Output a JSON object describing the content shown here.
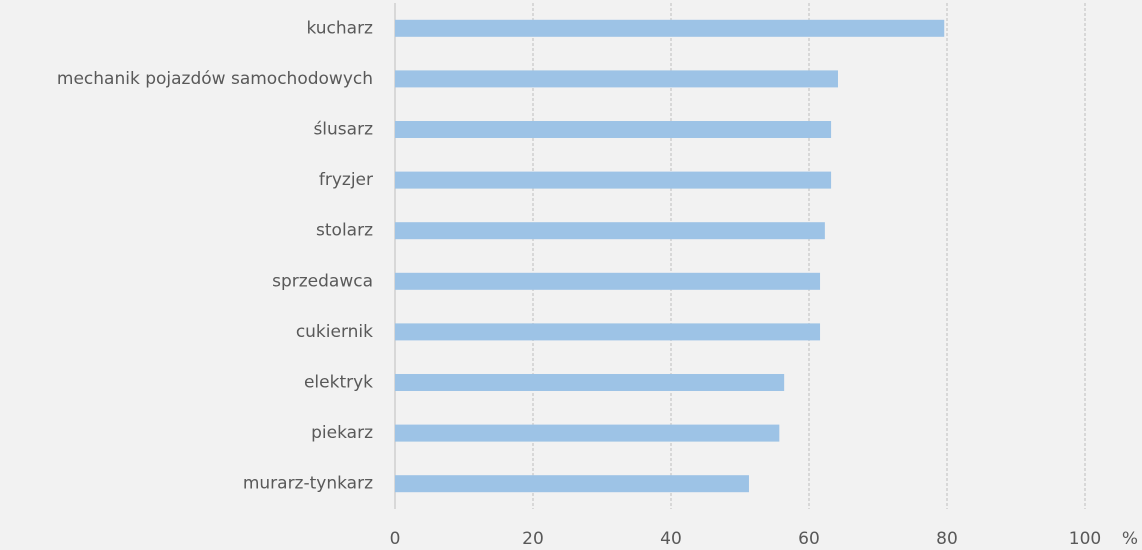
{
  "chart_data": {
    "type": "hbar",
    "xlabel": "%",
    "categories": [
      "kucharz",
      "mechanik pojazdów samochodowych",
      "ślusarz",
      "fryzjer",
      "stolarz",
      "sprzedawca",
      "cukiernik",
      "elektryk",
      "piekarz",
      "murarz-tynkarz"
    ],
    "values": [
      79.6,
      64.2,
      63.2,
      63.2,
      62.3,
      61.6,
      61.6,
      56.4,
      55.7,
      51.3
    ],
    "color": "#9dc3e6",
    "xlim": [
      0,
      100
    ],
    "xticks": [
      0,
      20,
      40,
      60,
      80,
      100
    ],
    "grid": true
  }
}
